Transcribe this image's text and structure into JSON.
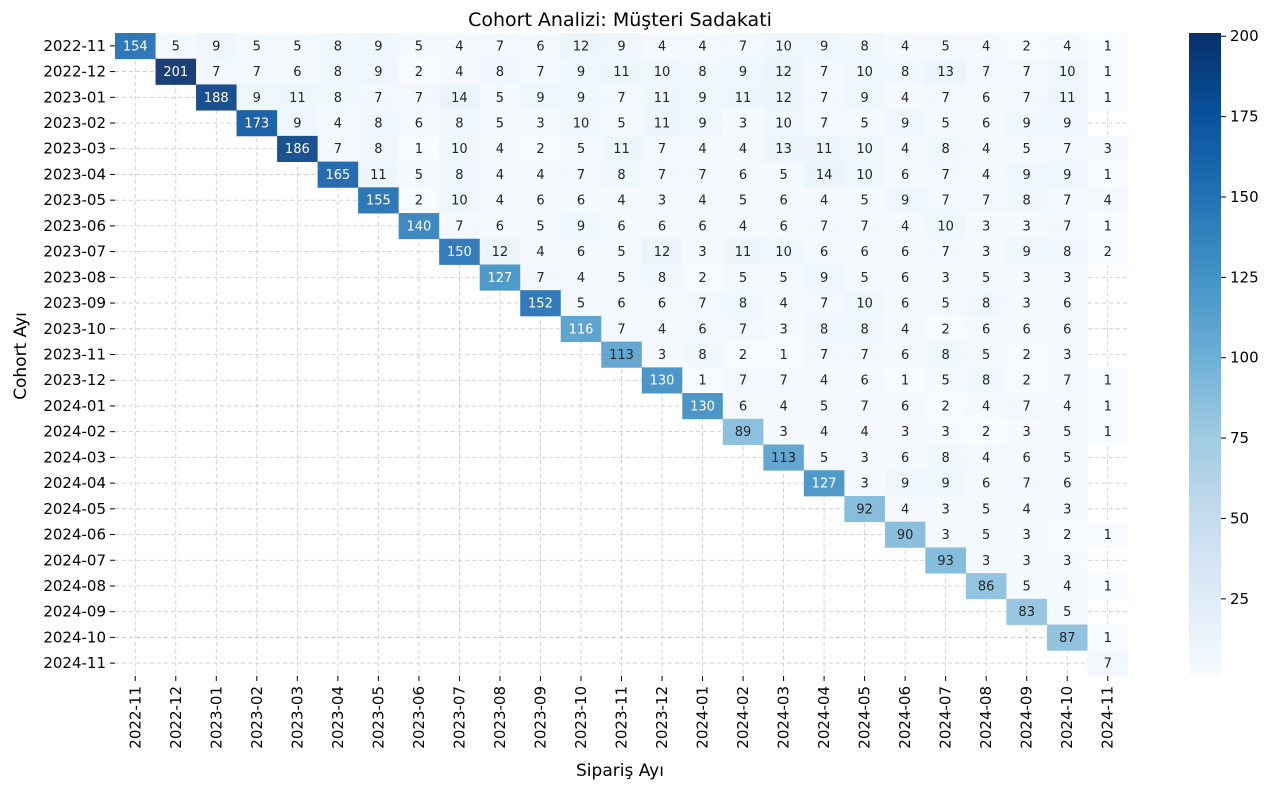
{
  "chart_data": {
    "type": "heatmap",
    "title": "Cohort Analizi: Müşteri Sadakati",
    "xlabel": "Sipariş Ayı",
    "ylabel": "Cohort Ayı",
    "colormap": "Blues",
    "colormap_stops": [
      "#f7fbff",
      "#deebf7",
      "#c6dbef",
      "#9ecae1",
      "#6baed6",
      "#4292c6",
      "#2171b5",
      "#08519c",
      "#08306b"
    ],
    "value_range": [
      1,
      201
    ],
    "colorbar_ticks": [
      25,
      50,
      75,
      100,
      125,
      150,
      175,
      200
    ],
    "grid": true,
    "columns": [
      "2022-11",
      "2022-12",
      "2023-01",
      "2023-02",
      "2023-03",
      "2023-04",
      "2023-05",
      "2023-06",
      "2023-07",
      "2023-08",
      "2023-09",
      "2023-10",
      "2023-11",
      "2023-12",
      "2024-01",
      "2024-02",
      "2024-03",
      "2024-04",
      "2024-05",
      "2024-06",
      "2024-07",
      "2024-08",
      "2024-09",
      "2024-10",
      "2024-11"
    ],
    "rows": [
      {
        "label": "2022-11",
        "start": 0,
        "values": [
          154,
          5,
          9,
          5,
          5,
          8,
          9,
          5,
          4,
          7,
          6,
          12,
          9,
          4,
          4,
          7,
          10,
          9,
          8,
          4,
          5,
          4,
          2,
          4,
          1
        ]
      },
      {
        "label": "2022-12",
        "start": 1,
        "values": [
          201,
          7,
          7,
          6,
          8,
          9,
          2,
          4,
          8,
          7,
          9,
          11,
          10,
          8,
          9,
          12,
          7,
          10,
          8,
          13,
          7,
          7,
          10,
          1
        ]
      },
      {
        "label": "2023-01",
        "start": 2,
        "values": [
          188,
          9,
          11,
          8,
          7,
          7,
          14,
          5,
          9,
          9,
          7,
          11,
          9,
          11,
          12,
          7,
          9,
          4,
          7,
          6,
          7,
          11,
          1
        ]
      },
      {
        "label": "2023-02",
        "start": 3,
        "values": [
          173,
          9,
          4,
          8,
          6,
          8,
          5,
          3,
          10,
          5,
          11,
          9,
          3,
          10,
          7,
          5,
          9,
          5,
          6,
          9,
          9
        ]
      },
      {
        "label": "2023-03",
        "start": 4,
        "values": [
          186,
          7,
          8,
          1,
          10,
          4,
          2,
          5,
          11,
          7,
          4,
          4,
          13,
          11,
          10,
          4,
          8,
          4,
          5,
          7,
          3
        ]
      },
      {
        "label": "2023-04",
        "start": 5,
        "values": [
          165,
          11,
          5,
          8,
          4,
          4,
          7,
          8,
          7,
          7,
          6,
          5,
          14,
          10,
          6,
          7,
          4,
          9,
          9,
          1
        ]
      },
      {
        "label": "2023-05",
        "start": 6,
        "values": [
          155,
          2,
          10,
          4,
          6,
          6,
          4,
          3,
          4,
          5,
          6,
          4,
          5,
          9,
          7,
          7,
          8,
          7,
          4
        ]
      },
      {
        "label": "2023-06",
        "start": 7,
        "values": [
          140,
          7,
          6,
          5,
          9,
          6,
          6,
          6,
          4,
          6,
          7,
          7,
          4,
          10,
          3,
          3,
          7,
          1
        ]
      },
      {
        "label": "2023-07",
        "start": 8,
        "values": [
          150,
          12,
          4,
          6,
          5,
          12,
          3,
          11,
          10,
          6,
          6,
          6,
          7,
          3,
          9,
          8,
          2
        ]
      },
      {
        "label": "2023-08",
        "start": 9,
        "values": [
          127,
          7,
          4,
          5,
          8,
          2,
          5,
          5,
          9,
          5,
          6,
          3,
          5,
          3,
          3
        ]
      },
      {
        "label": "2023-09",
        "start": 10,
        "values": [
          152,
          5,
          6,
          6,
          7,
          8,
          4,
          7,
          10,
          6,
          5,
          8,
          3,
          6
        ]
      },
      {
        "label": "2023-10",
        "start": 11,
        "values": [
          116,
          7,
          4,
          6,
          7,
          3,
          8,
          8,
          4,
          2,
          6,
          6,
          6
        ]
      },
      {
        "label": "2023-11",
        "start": 12,
        "values": [
          113,
          3,
          8,
          2,
          1,
          7,
          7,
          6,
          8,
          5,
          2,
          3
        ]
      },
      {
        "label": "2023-12",
        "start": 13,
        "values": [
          130,
          1,
          7,
          7,
          4,
          6,
          1,
          5,
          8,
          2,
          7,
          1
        ]
      },
      {
        "label": "2024-01",
        "start": 14,
        "values": [
          130,
          6,
          4,
          5,
          7,
          6,
          2,
          4,
          7,
          4,
          1
        ]
      },
      {
        "label": "2024-02",
        "start": 15,
        "values": [
          89,
          3,
          4,
          4,
          3,
          3,
          2,
          3,
          5,
          1
        ]
      },
      {
        "label": "2024-03",
        "start": 16,
        "values": [
          113,
          5,
          3,
          6,
          8,
          4,
          6,
          5
        ]
      },
      {
        "label": "2024-04",
        "start": 17,
        "values": [
          127,
          3,
          9,
          9,
          6,
          7,
          6
        ]
      },
      {
        "label": "2024-05",
        "start": 18,
        "values": [
          92,
          4,
          3,
          5,
          4,
          3
        ]
      },
      {
        "label": "2024-06",
        "start": 19,
        "values": [
          90,
          3,
          5,
          3,
          2,
          1
        ]
      },
      {
        "label": "2024-07",
        "start": 20,
        "values": [
          93,
          3,
          3,
          3
        ]
      },
      {
        "label": "2024-08",
        "start": 21,
        "values": [
          86,
          5,
          4,
          1
        ]
      },
      {
        "label": "2024-09",
        "start": 22,
        "values": [
          83,
          5
        ]
      },
      {
        "label": "2024-10",
        "start": 23,
        "values": [
          87,
          1
        ]
      },
      {
        "label": "2024-11",
        "start": 24,
        "values": [
          7
        ]
      }
    ]
  }
}
